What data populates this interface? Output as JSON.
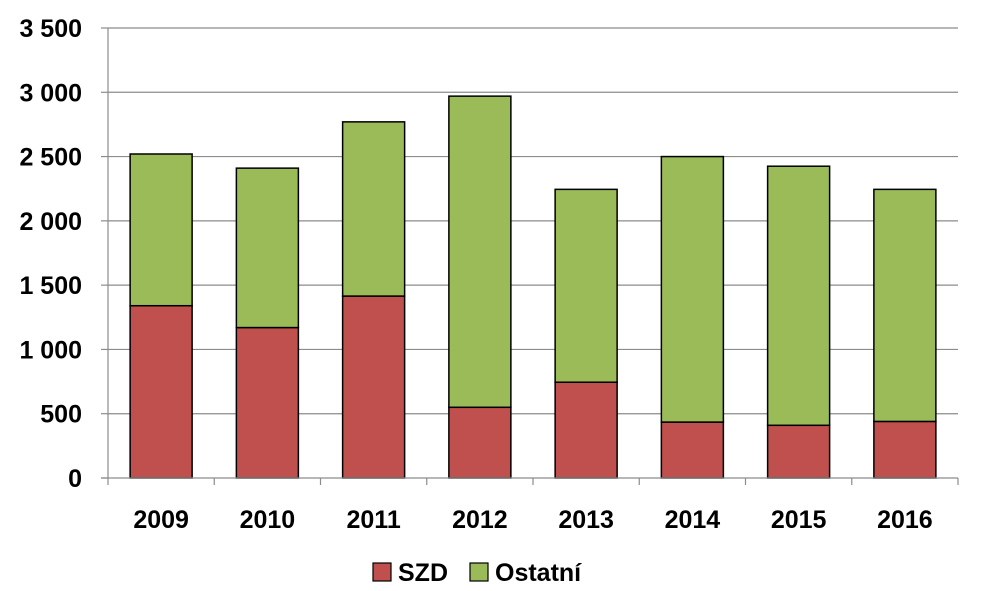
{
  "chart_data": {
    "type": "bar",
    "stacked": true,
    "categories": [
      "2009",
      "2010",
      "2011",
      "2012",
      "2013",
      "2014",
      "2015",
      "2016"
    ],
    "series": [
      {
        "name": "SZD",
        "color": "#c0504d",
        "values": [
          1340,
          1170,
          1415,
          550,
          745,
          435,
          410,
          440
        ]
      },
      {
        "name": "Ostatní",
        "color": "#9bbb59",
        "values": [
          1180,
          1240,
          1355,
          2420,
          1500,
          2065,
          2015,
          1805
        ]
      }
    ],
    "ylim": [
      0,
      3500
    ],
    "yticks": [
      {
        "value": 0,
        "label": "0"
      },
      {
        "value": 500,
        "label": "500"
      },
      {
        "value": 1000,
        "label": "1 000"
      },
      {
        "value": 1500,
        "label": "1 500"
      },
      {
        "value": 2000,
        "label": "2 000"
      },
      {
        "value": 2500,
        "label": "2 500"
      },
      {
        "value": 3000,
        "label": "3 000"
      },
      {
        "value": 3500,
        "label": "3 500"
      }
    ],
    "grid": true,
    "legend": "bottom",
    "title": "",
    "xlabel": "",
    "ylabel": ""
  }
}
